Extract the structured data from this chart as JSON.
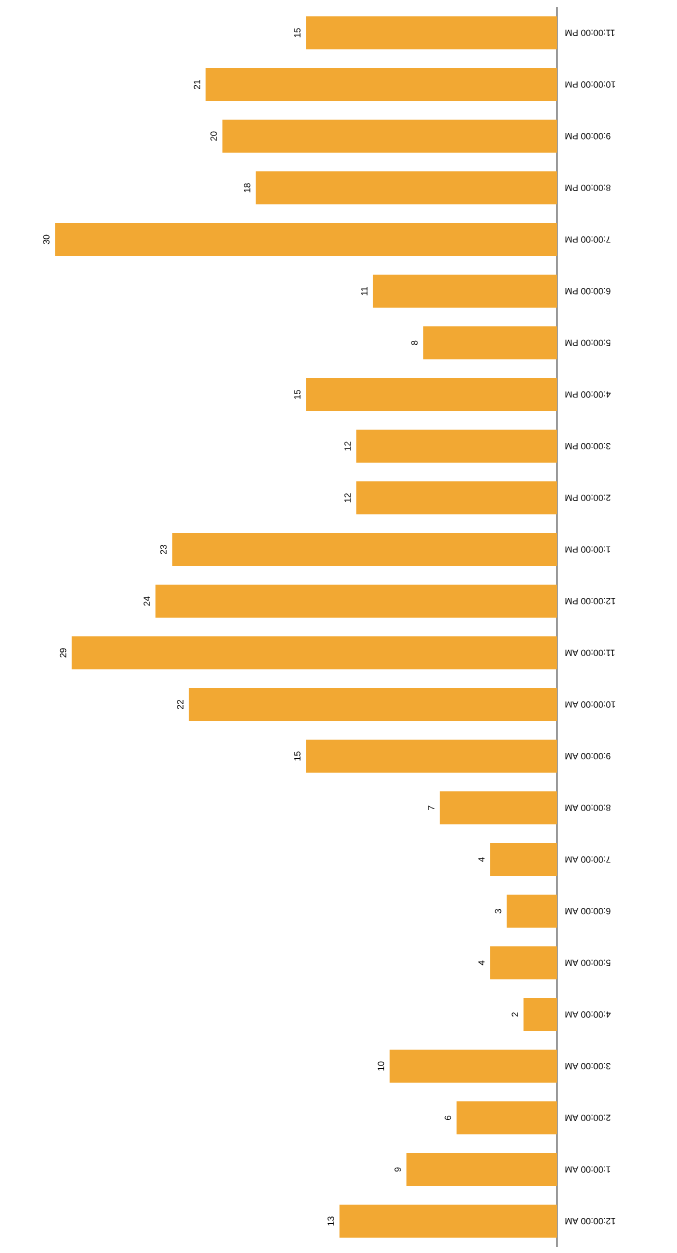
{
  "chart_data": {
    "type": "bar",
    "orientation": "horizontal",
    "data_labels": true,
    "color": "#f2a833",
    "categories": [
      "11:00:00 PM",
      "10:00:00 PM",
      "9:00:00 PM",
      "8:00:00 PM",
      "7:00:00 PM",
      "6:00:00 PM",
      "5:00:00 PM",
      "4:00:00 PM",
      "3:00:00 PM",
      "2:00:00 PM",
      "1:00:00 PM",
      "12:00:00 PM",
      "11:00:00 AM",
      "10:00:00 AM",
      "9:00:00 AM",
      "8:00:00 AM",
      "7:00:00 AM",
      "6:00:00 AM",
      "5:00:00 AM",
      "4:00:00 AM",
      "3:00:00 AM",
      "2:00:00 AM",
      "1:00:00 AM",
      "12:00:00 AM"
    ],
    "values": [
      15,
      21,
      20,
      18,
      30,
      11,
      8,
      15,
      12,
      12,
      23,
      24,
      29,
      22,
      15,
      7,
      4,
      3,
      4,
      2,
      10,
      6,
      9,
      13
    ]
  }
}
